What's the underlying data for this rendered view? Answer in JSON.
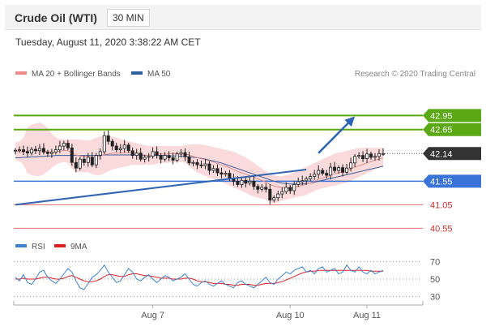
{
  "header": {
    "title": "Crude Oil (WTI)",
    "timeframe": "30 MIN"
  },
  "date_text": "Tuesday, August 11, 2020 3:38:22 AM CET",
  "legend": {
    "ma_bb_label": "MA 20 + Bollinger Bands",
    "ma50_label": "MA 50",
    "research": "Research © 2020 Trading Central",
    "rsi_label": "RSI",
    "ma9_label": "9MA"
  },
  "colors": {
    "green": "#5aa914",
    "blue_line": "#3b74d9",
    "red_line": "#e46c6c",
    "price_tag": "#333333",
    "bollinger_fill": "#f9d3d3",
    "ma20": "#e58f8f",
    "ma50": "#3a5f9a",
    "trend_arrow": "#2f64b3",
    "rsi_line": "#3d82cc",
    "ma9_line": "#e02020"
  },
  "chart_data": [
    {
      "type": "candlestick",
      "ylim": [
        40.4,
        43.25
      ],
      "x_tick_labels": [
        "Aug 7",
        "Aug 10",
        "Aug 11"
      ],
      "levels": [
        {
          "value": 42.95,
          "label": "42.95",
          "kind": "resistance"
        },
        {
          "value": 42.65,
          "label": "42.65",
          "kind": "resistance"
        },
        {
          "value": 41.55,
          "label": "41.55",
          "kind": "support"
        },
        {
          "value": 41.05,
          "label": "41.05",
          "kind": "target"
        },
        {
          "value": 40.55,
          "label": "40.55",
          "kind": "target"
        }
      ],
      "last_price": {
        "value": 42.14,
        "label": "42.14"
      },
      "trendline": [
        [
          0,
          41.05
        ],
        [
          72,
          41.8
        ]
      ],
      "projection_arrow": [
        [
          75,
          42.15
        ],
        [
          84,
          42.93
        ]
      ],
      "closes": [
        42.21,
        42.22,
        42.18,
        42.15,
        42.23,
        42.2,
        42.25,
        42.17,
        42.14,
        42.17,
        42.22,
        42.3,
        42.36,
        42.26,
        41.95,
        41.83,
        42.02,
        41.95,
        42.06,
        41.9,
        42.1,
        42.18,
        42.52,
        42.4,
        42.3,
        42.22,
        42.25,
        42.32,
        42.2,
        42.1,
        42.15,
        42.02,
        42.06,
        42.08,
        42.18,
        42.1,
        42.02,
        42.1,
        42.05,
        42.0,
        42.13,
        42.16,
        42.07,
        41.94,
        41.95,
        41.9,
        41.88,
        41.92,
        41.78,
        41.82,
        41.73,
        41.7,
        41.72,
        41.62,
        41.55,
        41.48,
        41.57,
        41.51,
        41.55,
        41.44,
        41.38,
        41.42,
        41.38,
        41.15,
        41.2,
        41.28,
        41.33,
        41.42,
        41.35,
        41.48,
        41.54,
        41.56,
        41.6,
        41.65,
        41.7,
        41.78,
        41.72,
        41.68,
        41.85,
        41.78,
        41.84,
        41.74,
        41.83,
        41.94,
        42.08,
        42.1,
        42.03,
        42.13,
        42.06,
        42.08,
        42.14,
        42.14
      ],
      "ma20": [
        42.19,
        42.19,
        42.19,
        42.2,
        42.2,
        42.2,
        42.2,
        42.19,
        42.18,
        42.17,
        42.17,
        42.19,
        42.21,
        42.2,
        42.16,
        42.11,
        42.09,
        42.08,
        42.08,
        42.06,
        42.07,
        42.08,
        42.12,
        42.13,
        42.15,
        42.15,
        42.15,
        42.16,
        42.16,
        42.15,
        42.14,
        42.12,
        42.11,
        42.1,
        42.11,
        42.12,
        42.13,
        42.13,
        42.13,
        42.14,
        42.14,
        42.13,
        42.13,
        42.11,
        42.08,
        42.05,
        42.03,
        42.01,
        41.98,
        41.96,
        41.93,
        41.9,
        41.87,
        41.84,
        41.8,
        41.76,
        41.73,
        41.7,
        41.67,
        41.64,
        41.6,
        41.57,
        41.53,
        41.48,
        41.45,
        41.43,
        41.41,
        41.41,
        41.4,
        41.42,
        41.44,
        41.46,
        41.49,
        41.51,
        41.55,
        41.59,
        41.62,
        41.65,
        41.68,
        41.71,
        41.73,
        41.76,
        41.78,
        41.81,
        41.85,
        41.88,
        41.91,
        41.94,
        41.97,
        42.0,
        42.02,
        42.05
      ],
      "bb_upper": [
        42.38,
        42.4,
        42.48,
        42.7,
        42.76,
        42.78,
        42.8,
        42.76,
        42.68,
        42.56,
        42.48,
        42.45,
        42.44,
        42.44,
        42.44,
        42.44,
        42.44,
        42.42,
        42.42,
        42.44,
        42.48,
        42.5,
        42.52,
        42.52,
        42.5,
        42.48,
        42.45,
        42.42,
        42.4,
        42.38,
        42.36,
        42.34,
        42.32,
        42.3,
        42.3,
        42.3,
        42.3,
        42.3,
        42.3,
        42.3,
        42.3,
        42.3,
        42.32,
        42.33,
        42.34,
        42.34,
        42.33,
        42.32,
        42.3,
        42.28,
        42.26,
        42.24,
        42.22,
        42.2,
        42.18,
        42.14,
        42.1,
        42.06,
        42.0,
        41.94,
        41.88,
        41.82,
        41.76,
        41.72,
        41.68,
        41.66,
        41.66,
        41.68,
        41.7,
        41.74,
        41.78,
        41.82,
        41.86,
        41.9,
        41.94,
        41.98,
        42.02,
        42.06,
        42.1,
        42.14,
        42.16,
        42.18,
        42.2,
        42.22,
        42.24,
        42.26,
        42.26,
        42.26,
        42.26,
        42.26,
        42.26,
        42.26
      ],
      "bb_lower": [
        42.0,
        41.98,
        41.9,
        41.72,
        41.68,
        41.66,
        41.66,
        41.7,
        41.76,
        41.84,
        41.9,
        41.94,
        41.96,
        41.94,
        41.82,
        41.74,
        41.74,
        41.74,
        41.74,
        41.7,
        41.68,
        41.68,
        41.72,
        41.76,
        41.8,
        41.82,
        41.84,
        41.86,
        41.88,
        41.9,
        41.9,
        41.9,
        41.9,
        41.9,
        41.9,
        41.92,
        41.94,
        41.94,
        41.94,
        41.96,
        41.96,
        41.96,
        41.94,
        41.88,
        41.8,
        41.74,
        41.7,
        41.66,
        41.62,
        41.6,
        41.58,
        41.54,
        41.5,
        41.46,
        41.42,
        41.38,
        41.34,
        41.3,
        41.26,
        41.22,
        41.2,
        41.18,
        41.16,
        41.1,
        41.08,
        41.1,
        41.14,
        41.16,
        41.18,
        41.2,
        41.22,
        41.24,
        41.26,
        41.3,
        41.34,
        41.38,
        41.4,
        41.42,
        41.44,
        41.46,
        41.48,
        41.5,
        41.52,
        41.56,
        41.6,
        41.64,
        41.68,
        41.72,
        41.76,
        41.8,
        41.84,
        41.86
      ],
      "ma50": [
        42.05,
        42.05,
        42.06,
        42.06,
        42.07,
        42.07,
        42.08,
        42.08,
        42.09,
        42.09,
        42.1,
        42.1,
        42.1,
        42.1,
        42.1,
        42.1,
        42.1,
        42.1,
        42.1,
        42.1,
        42.1,
        42.1,
        42.11,
        42.11,
        42.11,
        42.11,
        42.11,
        42.11,
        42.11,
        42.11,
        42.11,
        42.11,
        42.1,
        42.1,
        42.1,
        42.1,
        42.1,
        42.1,
        42.09,
        42.09,
        42.09,
        42.08,
        42.08,
        42.07,
        42.06,
        42.05,
        42.04,
        42.02,
        42.0,
        41.98,
        41.96,
        41.94,
        41.91,
        41.88,
        41.85,
        41.82,
        41.79,
        41.76,
        41.73,
        41.7,
        41.67,
        41.64,
        41.61,
        41.58,
        41.55,
        41.53,
        41.51,
        41.5,
        41.49,
        41.49,
        41.49,
        41.49,
        41.5,
        41.51,
        41.53,
        41.55,
        41.57,
        41.59,
        41.61,
        41.63,
        41.65,
        41.67,
        41.69,
        41.71,
        41.73,
        41.75,
        41.77,
        41.79,
        41.81,
        41.83,
        41.85,
        41.87
      ]
    },
    {
      "type": "line",
      "ylim": [
        25,
        75
      ],
      "y_ticks": [
        70,
        50,
        30
      ],
      "series": [
        {
          "name": "RSI",
          "values": [
            52,
            48,
            55,
            46,
            44,
            50,
            58,
            60,
            52,
            48,
            45,
            50,
            56,
            62,
            58,
            48,
            40,
            38,
            45,
            52,
            55,
            60,
            66,
            58,
            52,
            46,
            48,
            55,
            62,
            58,
            50,
            48,
            52,
            55,
            50,
            46,
            50,
            54,
            52,
            48,
            50,
            52,
            56,
            50,
            44,
            42,
            46,
            48,
            44,
            42,
            45,
            48,
            44,
            42,
            40,
            46,
            48,
            44,
            42,
            40,
            44,
            48,
            52,
            46,
            44,
            50,
            54,
            58,
            56,
            60,
            62,
            64,
            58,
            60,
            56,
            62,
            64,
            58,
            60,
            62,
            56,
            58,
            66,
            60,
            58,
            64,
            58,
            56,
            60,
            56,
            58,
            60
          ]
        },
        {
          "name": "9MA",
          "values": [
            50,
            50,
            51,
            50,
            50,
            50,
            51,
            52,
            52,
            51,
            50,
            50,
            51,
            53,
            54,
            52,
            50,
            48,
            47,
            47,
            48,
            50,
            53,
            55,
            55,
            54,
            53,
            53,
            55,
            56,
            56,
            55,
            54,
            54,
            53,
            52,
            51,
            51,
            51,
            50,
            50,
            50,
            51,
            51,
            50,
            48,
            47,
            47,
            46,
            45,
            45,
            45,
            44,
            44,
            43,
            43,
            44,
            44,
            44,
            43,
            43,
            44,
            45,
            45,
            45,
            46,
            47,
            49,
            51,
            53,
            55,
            57,
            58,
            59,
            59,
            60,
            60,
            60,
            60,
            60,
            60,
            60,
            60,
            60,
            60,
            60,
            60,
            60,
            59,
            59,
            59,
            59
          ]
        }
      ]
    }
  ]
}
